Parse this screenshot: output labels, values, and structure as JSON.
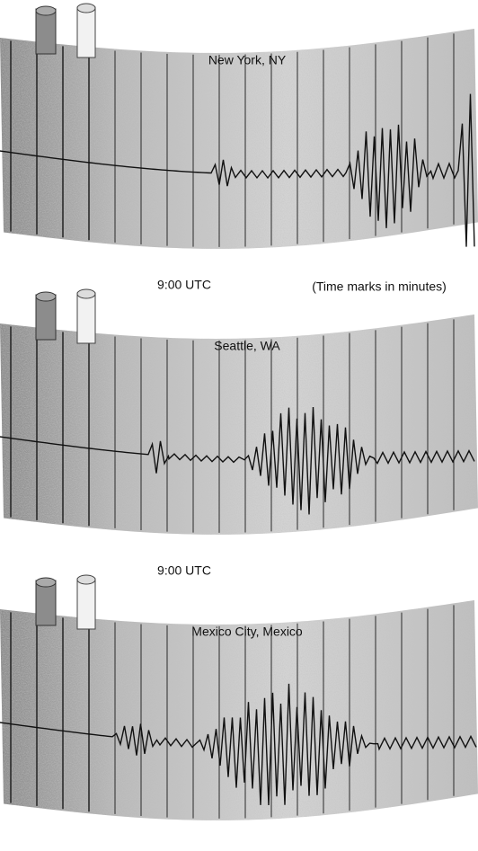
{
  "panels": [
    {
      "label": "New York, NY",
      "time": "9:00 UTC",
      "note": "(Time marks in minutes)"
    },
    {
      "label": "Seattle, WA",
      "time": "9:00 UTC"
    },
    {
      "label": "Mexico City, Mexico"
    }
  ]
}
